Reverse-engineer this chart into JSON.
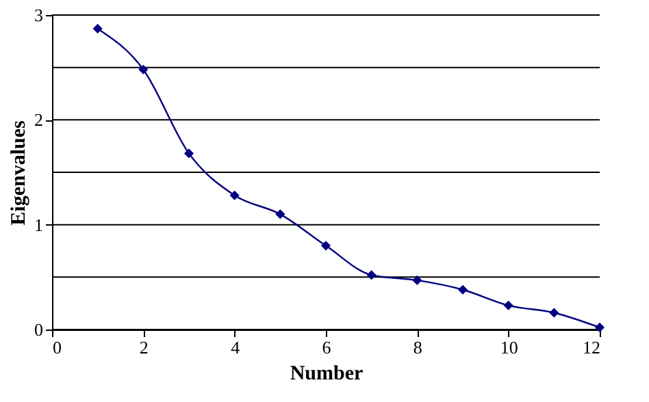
{
  "chart_data": {
    "type": "line",
    "xlabel": "Number",
    "ylabel": "Eigenvalues",
    "x": [
      1,
      2,
      3,
      4,
      5,
      6,
      7,
      8,
      9,
      10,
      11,
      12
    ],
    "series": [
      {
        "color": "#000080",
        "values": [
          2.87,
          2.48,
          1.68,
          1.28,
          1.1,
          0.8,
          0.52,
          0.47,
          0.38,
          0.23,
          0.16,
          0.02
        ]
      }
    ],
    "xlim": [
      0,
      12
    ],
    "xticks": [
      0,
      2,
      4,
      6,
      8,
      10,
      12
    ],
    "ylim": [
      0,
      3
    ],
    "yticks": [
      0,
      {
        "value": 0.5,
        "label": null
      },
      1,
      {
        "value": 1.5,
        "label": null
      },
      2,
      {
        "value": 2.5,
        "label": null
      },
      3
    ],
    "grid": "y",
    "marker": "diamond",
    "line_style": "solid",
    "legend": false
  }
}
